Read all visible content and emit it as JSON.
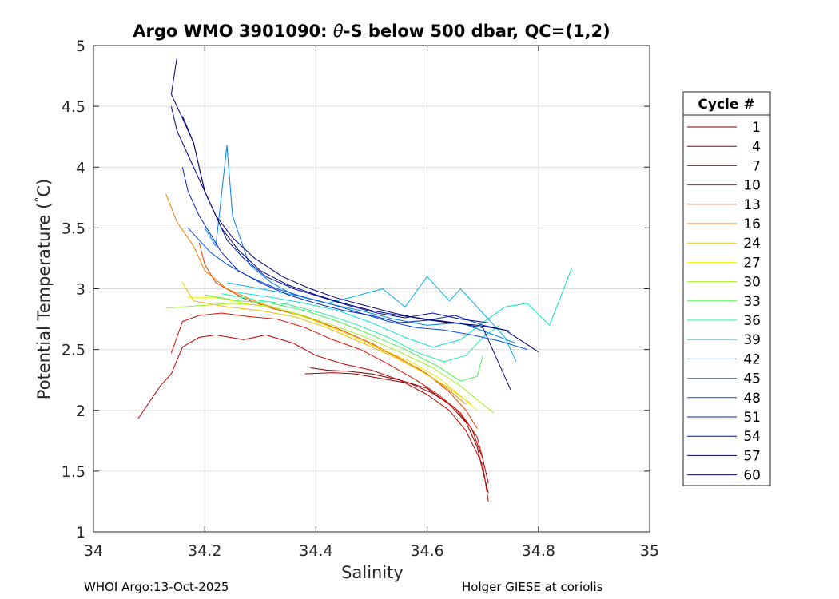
{
  "chart_data": {
    "type": "line",
    "title_parts": [
      "Argo WMO 3901090: ",
      "θ",
      "-S below 500 dbar,  QC=(1,2)"
    ],
    "xlabel": "Salinity",
    "ylabel_parts": [
      "Potential Temperature (",
      "°",
      "C)"
    ],
    "xlim": [
      34,
      35
    ],
    "ylim": [
      1,
      5
    ],
    "xticks": [
      34,
      34.2,
      34.4,
      34.6,
      34.8,
      35
    ],
    "yticks": [
      1,
      1.5,
      2,
      2.5,
      3,
      3.5,
      4,
      4.5,
      5
    ],
    "grid": true,
    "legend": {
      "title": "Cycle #",
      "placement": "right-outside",
      "entries": [
        {
          "label": "1",
          "color": "#800000"
        },
        {
          "label": "4",
          "color": "#a00000"
        },
        {
          "label": "7",
          "color": "#c00000"
        },
        {
          "label": "10",
          "color": "#e01000"
        },
        {
          "label": "13",
          "color": "#e84000"
        },
        {
          "label": "16",
          "color": "#f08000"
        },
        {
          "label": "24",
          "color": "#e8c000"
        },
        {
          "label": "27",
          "color": "#f0f000"
        },
        {
          "label": "30",
          "color": "#a0f020"
        },
        {
          "label": "33",
          "color": "#50f050"
        },
        {
          "label": "36",
          "color": "#20f0a0"
        },
        {
          "label": "39",
          "color": "#10e0d0"
        },
        {
          "label": "42",
          "color": "#00b0f0"
        },
        {
          "label": "45",
          "color": "#0080f0"
        },
        {
          "label": "48",
          "color": "#0050e0"
        },
        {
          "label": "51",
          "color": "#0020c0"
        },
        {
          "label": "54",
          "color": "#0010a0"
        },
        {
          "label": "57",
          "color": "#000080"
        },
        {
          "label": "60",
          "color": "#000070"
        }
      ]
    },
    "series": [
      {
        "name": "1",
        "color": "#800000",
        "points": [
          [
            34.39,
            2.35
          ],
          [
            34.42,
            2.33
          ],
          [
            34.46,
            2.32
          ],
          [
            34.5,
            2.3
          ],
          [
            34.55,
            2.25
          ],
          [
            34.6,
            2.18
          ],
          [
            34.64,
            2.05
          ],
          [
            34.67,
            1.9
          ],
          [
            34.69,
            1.7
          ],
          [
            34.7,
            1.5
          ],
          [
            34.71,
            1.32
          ]
        ]
      },
      {
        "name": "4",
        "color": "#a00000",
        "points": [
          [
            34.38,
            2.3
          ],
          [
            34.43,
            2.31
          ],
          [
            34.47,
            2.3
          ],
          [
            34.52,
            2.26
          ],
          [
            34.57,
            2.22
          ],
          [
            34.61,
            2.14
          ],
          [
            34.65,
            2.02
          ],
          [
            34.68,
            1.85
          ],
          [
            34.7,
            1.6
          ],
          [
            34.71,
            1.4
          ]
        ]
      },
      {
        "name": "7",
        "color": "#c00000",
        "points": [
          [
            34.08,
            1.93
          ],
          [
            34.12,
            2.2
          ],
          [
            34.14,
            2.3
          ],
          [
            34.16,
            2.52
          ],
          [
            34.19,
            2.6
          ],
          [
            34.22,
            2.62
          ],
          [
            34.27,
            2.58
          ],
          [
            34.31,
            2.62
          ],
          [
            34.36,
            2.55
          ],
          [
            34.4,
            2.45
          ],
          [
            34.45,
            2.38
          ],
          [
            34.5,
            2.33
          ],
          [
            34.55,
            2.25
          ],
          [
            34.6,
            2.13
          ],
          [
            34.64,
            2.0
          ],
          [
            34.67,
            1.83
          ],
          [
            34.7,
            1.55
          ],
          [
            34.71,
            1.25
          ]
        ]
      },
      {
        "name": "10",
        "color": "#e01000",
        "points": [
          [
            34.14,
            2.47
          ],
          [
            34.16,
            2.73
          ],
          [
            34.19,
            2.78
          ],
          [
            34.23,
            2.8
          ],
          [
            34.28,
            2.77
          ],
          [
            34.33,
            2.75
          ],
          [
            34.38,
            2.68
          ],
          [
            34.43,
            2.58
          ],
          [
            34.48,
            2.5
          ],
          [
            34.53,
            2.38
          ],
          [
            34.58,
            2.25
          ],
          [
            34.62,
            2.13
          ],
          [
            34.66,
            1.98
          ],
          [
            34.69,
            1.78
          ],
          [
            34.7,
            1.6
          ]
        ]
      },
      {
        "name": "13",
        "color": "#e84000",
        "points": [
          [
            34.19,
            3.38
          ],
          [
            34.2,
            3.2
          ],
          [
            34.22,
            3.05
          ],
          [
            34.27,
            2.92
          ],
          [
            34.32,
            2.84
          ],
          [
            34.38,
            2.77
          ],
          [
            34.44,
            2.67
          ],
          [
            34.5,
            2.55
          ],
          [
            34.55,
            2.43
          ],
          [
            34.6,
            2.3
          ],
          [
            34.64,
            2.15
          ],
          [
            34.67,
            2.0
          ],
          [
            34.69,
            1.85
          ]
        ]
      },
      {
        "name": "16",
        "color": "#f08000",
        "points": [
          [
            34.13,
            3.78
          ],
          [
            34.15,
            3.55
          ],
          [
            34.18,
            3.35
          ],
          [
            34.2,
            3.15
          ],
          [
            34.24,
            3.0
          ],
          [
            34.3,
            2.88
          ],
          [
            34.36,
            2.8
          ],
          [
            34.42,
            2.7
          ],
          [
            34.48,
            2.58
          ],
          [
            34.54,
            2.45
          ],
          [
            34.59,
            2.33
          ],
          [
            34.63,
            2.2
          ],
          [
            34.67,
            2.05
          ]
        ]
      },
      {
        "name": "24",
        "color": "#e8c000",
        "points": [
          [
            34.16,
            3.05
          ],
          [
            34.18,
            2.9
          ],
          [
            34.24,
            2.85
          ],
          [
            34.3,
            2.82
          ],
          [
            34.36,
            2.77
          ],
          [
            34.42,
            2.68
          ],
          [
            34.48,
            2.56
          ],
          [
            34.54,
            2.44
          ],
          [
            34.59,
            2.32
          ],
          [
            34.64,
            2.18
          ],
          [
            34.68,
            2.05
          ]
        ]
      },
      {
        "name": "27",
        "color": "#f0f000",
        "points": [
          [
            34.17,
            2.93
          ],
          [
            34.22,
            2.93
          ],
          [
            34.27,
            2.88
          ],
          [
            34.33,
            2.84
          ],
          [
            34.39,
            2.75
          ],
          [
            34.45,
            2.64
          ],
          [
            34.51,
            2.52
          ],
          [
            34.57,
            2.4
          ],
          [
            34.62,
            2.27
          ],
          [
            34.66,
            2.12
          ],
          [
            34.69,
            2.0
          ]
        ]
      },
      {
        "name": "30",
        "color": "#a0f020",
        "points": [
          [
            34.13,
            2.84
          ],
          [
            34.19,
            2.86
          ],
          [
            34.25,
            2.88
          ],
          [
            34.31,
            2.86
          ],
          [
            34.37,
            2.79
          ],
          [
            34.43,
            2.7
          ],
          [
            34.49,
            2.6
          ],
          [
            34.55,
            2.48
          ],
          [
            34.61,
            2.35
          ],
          [
            34.66,
            2.2
          ],
          [
            34.7,
            2.05
          ],
          [
            34.72,
            1.98
          ]
        ]
      },
      {
        "name": "33",
        "color": "#50f050",
        "points": [
          [
            34.2,
            2.95
          ],
          [
            34.26,
            2.9
          ],
          [
            34.32,
            2.88
          ],
          [
            34.38,
            2.82
          ],
          [
            34.44,
            2.73
          ],
          [
            34.5,
            2.62
          ],
          [
            34.56,
            2.5
          ],
          [
            34.62,
            2.36
          ],
          [
            34.66,
            2.24
          ],
          [
            34.69,
            2.28
          ],
          [
            34.7,
            2.45
          ]
        ]
      },
      {
        "name": "36",
        "color": "#20f0a0",
        "points": [
          [
            34.23,
            2.96
          ],
          [
            34.29,
            2.91
          ],
          [
            34.35,
            2.87
          ],
          [
            34.41,
            2.8
          ],
          [
            34.47,
            2.71
          ],
          [
            34.53,
            2.6
          ],
          [
            34.58,
            2.48
          ],
          [
            34.63,
            2.4
          ],
          [
            34.67,
            2.45
          ],
          [
            34.7,
            2.6
          ],
          [
            34.73,
            2.7
          ]
        ]
      },
      {
        "name": "39",
        "color": "#10e0d0",
        "points": [
          [
            34.26,
            2.97
          ],
          [
            34.32,
            2.93
          ],
          [
            34.38,
            2.88
          ],
          [
            34.44,
            2.82
          ],
          [
            34.5,
            2.72
          ],
          [
            34.56,
            2.6
          ],
          [
            34.61,
            2.52
          ],
          [
            34.66,
            2.58
          ],
          [
            34.7,
            2.72
          ],
          [
            34.74,
            2.85
          ],
          [
            34.78,
            2.88
          ],
          [
            34.82,
            2.7
          ],
          [
            34.86,
            3.17
          ]
        ]
      },
      {
        "name": "42",
        "color": "#00b0f0",
        "points": [
          [
            34.24,
            3.05
          ],
          [
            34.3,
            3.0
          ],
          [
            34.36,
            2.95
          ],
          [
            34.42,
            2.88
          ],
          [
            34.48,
            2.95
          ],
          [
            34.52,
            3.0
          ],
          [
            34.56,
            2.85
          ],
          [
            34.6,
            3.1
          ],
          [
            34.64,
            2.9
          ],
          [
            34.66,
            3.0
          ],
          [
            34.7,
            2.8
          ],
          [
            34.74,
            2.6
          ],
          [
            34.76,
            2.4
          ]
        ]
      },
      {
        "name": "45",
        "color": "#0080f0",
        "points": [
          [
            34.2,
            3.5
          ],
          [
            34.22,
            3.35
          ],
          [
            34.24,
            4.18
          ],
          [
            34.25,
            3.6
          ],
          [
            34.28,
            3.2
          ],
          [
            34.32,
            3.05
          ],
          [
            34.36,
            2.95
          ],
          [
            34.42,
            2.88
          ],
          [
            34.48,
            2.82
          ],
          [
            34.54,
            2.75
          ],
          [
            34.6,
            2.7
          ],
          [
            34.66,
            2.72
          ],
          [
            34.72,
            2.62
          ],
          [
            34.76,
            2.55
          ]
        ]
      },
      {
        "name": "48",
        "color": "#0050e0",
        "points": [
          [
            34.17,
            3.5
          ],
          [
            34.19,
            3.4
          ],
          [
            34.21,
            3.3
          ],
          [
            34.24,
            3.2
          ],
          [
            34.28,
            3.1
          ],
          [
            34.33,
            3.0
          ],
          [
            34.38,
            2.93
          ],
          [
            34.43,
            2.87
          ],
          [
            34.48,
            2.8
          ],
          [
            34.53,
            2.73
          ],
          [
            34.58,
            2.68
          ],
          [
            34.63,
            2.66
          ],
          [
            34.68,
            2.62
          ],
          [
            34.73,
            2.57
          ],
          [
            34.78,
            2.5
          ]
        ]
      },
      {
        "name": "51",
        "color": "#0020c0",
        "points": [
          [
            34.16,
            4.0
          ],
          [
            34.17,
            3.8
          ],
          [
            34.19,
            3.6
          ],
          [
            34.21,
            3.45
          ],
          [
            34.23,
            3.3
          ],
          [
            34.26,
            3.15
          ],
          [
            34.3,
            3.05
          ],
          [
            34.35,
            2.95
          ],
          [
            34.4,
            2.88
          ],
          [
            34.45,
            2.82
          ],
          [
            34.5,
            2.78
          ],
          [
            34.55,
            2.72
          ],
          [
            34.6,
            2.74
          ],
          [
            34.65,
            2.78
          ],
          [
            34.7,
            2.7
          ],
          [
            34.75,
            2.65
          ]
        ]
      },
      {
        "name": "54",
        "color": "#0010a0",
        "points": [
          [
            34.16,
            4.42
          ],
          [
            34.18,
            4.2
          ],
          [
            34.19,
            4.0
          ],
          [
            34.2,
            3.8
          ],
          [
            34.22,
            3.6
          ],
          [
            34.24,
            3.4
          ],
          [
            34.27,
            3.25
          ],
          [
            34.31,
            3.1
          ],
          [
            34.36,
            3.0
          ],
          [
            34.41,
            2.93
          ],
          [
            34.46,
            2.86
          ],
          [
            34.51,
            2.8
          ],
          [
            34.56,
            2.76
          ],
          [
            34.61,
            2.8
          ],
          [
            34.66,
            2.75
          ],
          [
            34.71,
            2.72
          ]
        ]
      },
      {
        "name": "57",
        "color": "#000080",
        "points": [
          [
            34.14,
            4.5
          ],
          [
            34.15,
            4.3
          ],
          [
            34.17,
            4.1
          ],
          [
            34.19,
            3.9
          ],
          [
            34.21,
            3.7
          ],
          [
            34.23,
            3.5
          ],
          [
            34.26,
            3.32
          ],
          [
            34.3,
            3.15
          ],
          [
            34.35,
            3.03
          ],
          [
            34.4,
            2.95
          ],
          [
            34.45,
            2.88
          ],
          [
            34.5,
            2.82
          ],
          [
            34.55,
            2.78
          ],
          [
            34.6,
            2.75
          ],
          [
            34.65,
            2.72
          ],
          [
            34.7,
            2.68
          ],
          [
            34.75,
            2.17
          ]
        ]
      },
      {
        "name": "60",
        "color": "#000070",
        "points": [
          [
            34.15,
            4.9
          ],
          [
            34.14,
            4.6
          ],
          [
            34.16,
            4.4
          ],
          [
            34.18,
            4.2
          ],
          [
            34.19,
            4.0
          ],
          [
            34.2,
            3.8
          ],
          [
            34.22,
            3.6
          ],
          [
            34.25,
            3.42
          ],
          [
            34.29,
            3.25
          ],
          [
            34.34,
            3.1
          ],
          [
            34.39,
            3.0
          ],
          [
            34.44,
            2.92
          ],
          [
            34.49,
            2.86
          ],
          [
            34.54,
            2.8
          ],
          [
            34.59,
            2.75
          ],
          [
            34.64,
            2.72
          ],
          [
            34.69,
            2.7
          ],
          [
            34.74,
            2.66
          ],
          [
            34.8,
            2.48
          ]
        ]
      }
    ]
  },
  "footer": {
    "left": "WHOI Argo:13-Oct-2025",
    "right": "Holger GIESE at coriolis"
  }
}
